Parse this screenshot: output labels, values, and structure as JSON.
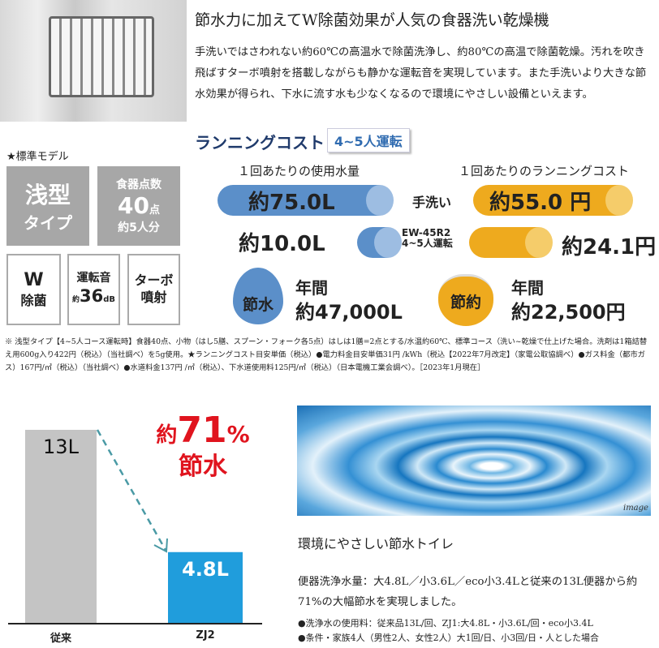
{
  "header": {
    "title": "節水力に加えてW除菌効果が人気の食器洗い乾燥機",
    "body": "手洗いではさわれない約60℃の高温水で除菌洗浄し、約80℃の高温で除菌乾燥。汚れを吹き飛ばすターボ噴射を搭載しながらも静かな運転音を実現しています。また手洗いより大きな節水効果が得られ、下水に流す水も少なくなるので環境にやさしい設備といえます。"
  },
  "specs": {
    "label": "★標準モデル",
    "type_main": "浅型",
    "type_sub": "タイプ",
    "dishes_title": "食器点数",
    "dishes_num": "40",
    "dishes_unit": "点",
    "dishes_people": "約5人分",
    "w_main": "W",
    "w_sub": "除菌",
    "noise_title": "運転音",
    "noise_prefix": "約",
    "noise_num": "36",
    "noise_unit": "dB",
    "turbo_main": "ターボ",
    "turbo_sub": "噴射"
  },
  "running_cost": {
    "title": "ランニングコスト",
    "badge": "4~5人運転",
    "water_header": "１回あたりの使用水量",
    "cost_header": "１回あたりのランニングコスト",
    "hand_label": "手洗い",
    "hand_water": "約75.0L",
    "hand_cost": "約55.0 円",
    "model_label": "EW-45R2",
    "model_sub": "4~5人運転",
    "model_water": "約10.0L",
    "model_cost": "約24.1円",
    "save_water_icon": "節水",
    "save_water_label": "年間",
    "save_water_value": "約47,000L",
    "save_cost_icon": "節約",
    "save_cost_label": "年間",
    "save_cost_value": "約22,500円",
    "colors": {
      "blue": "#5b8fc9",
      "orange": "#eeaa1e",
      "navy": "#1f3a6b"
    }
  },
  "footnote": "※ 浅型タイプ【4~5人コース運転時】食器40点、小物（はし5膳、スプーン・フォーク各5点）はしは1膳=2点とする/水温約60℃、標準コース（洗い~乾燥で仕上げた場合。洗剤は1箱詰替え用600g入り422円（税込）（当社調べ）を5g使用。★ランニングコスト目安単価（税込）●電力料金目安単価31円 /kWh（税込【2022年7月改定】（家電公取協調べ）●ガス料金（都市ガス）167円/㎥（税込）（当社調べ）●水道料金137円 /㎥（税込）、下水道使用料125円/㎥（税込）（日本電機工業会調べ）。［2023年1月現在］",
  "chart_data": {
    "type": "bar",
    "categories": [
      "従来",
      "ZJ2"
    ],
    "values": [
      13,
      4.8
    ],
    "data_labels": [
      "13L",
      "4.8L"
    ],
    "colors": [
      "#c4c4c4",
      "#209ddc"
    ],
    "annotation_prefix": "約",
    "annotation_value": "71",
    "annotation_unit": "%",
    "annotation_sub": "節水",
    "annotation_color": "#e0141e"
  },
  "toilet": {
    "image_caption": "image",
    "title": "環境にやさしい節水トイレ",
    "body": "便器洗浄水量：大4.8L／小3.6L／eco小3.4Lと従来の13L便器から約71%の大幅節水を実現しました。",
    "note1": "●洗浄水の使用料：従来品13L/回、ZJ1:大4.8L・小3.6L/回・eco小3.4L",
    "note2": "●条件・家族4人（男性2人、女性2人）大1回/日、小3回/日・人とした場合"
  }
}
